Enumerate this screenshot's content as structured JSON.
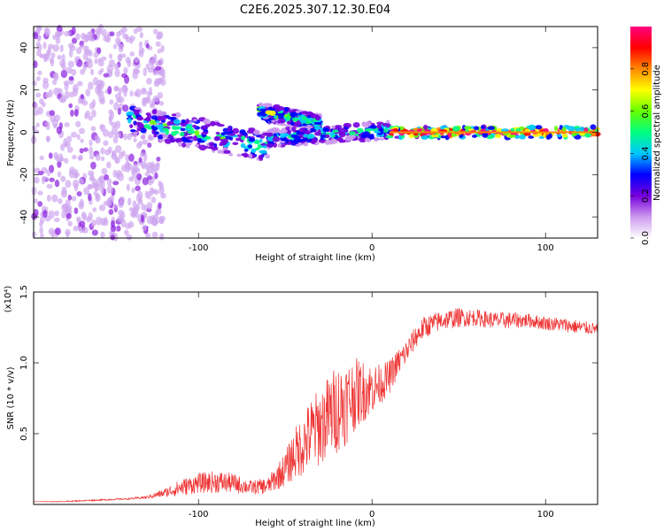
{
  "chart_data": [
    {
      "type": "heatmap",
      "title": "C2E6.2025.307.12.30.E04",
      "xlabel": "Height of straight line (km)",
      "ylabel": "Frequency (Hz)",
      "xlim": [
        -195,
        130
      ],
      "ylim": [
        -50,
        50
      ],
      "xticks": [
        -100,
        0,
        100
      ],
      "yticks": [
        -40,
        -20,
        0,
        20,
        40
      ],
      "colorbar": {
        "label": "Normalized spectral amplitude",
        "range": [
          0,
          1
        ],
        "ticks": [
          "0.0",
          "0.2",
          "0.4",
          "0.6",
          "0.8"
        ],
        "tick_values": [
          0.0,
          0.2,
          0.4,
          0.6,
          0.8
        ],
        "colors": [
          "#ffffff",
          "#cc99ee",
          "#7700dd",
          "#0000ff",
          "#00c8ff",
          "#00ff80",
          "#66ff00",
          "#ffff00",
          "#ff8800",
          "#ff0000",
          "#ff0080"
        ]
      },
      "regions": [
        {
          "name": "diffuse noise",
          "x_range": [
            -195,
            -120
          ],
          "freq_range": [
            -50,
            50
          ],
          "amplitude": 0.08
        },
        {
          "name": "broadening band",
          "x_range": [
            -140,
            -60
          ],
          "freq_center": [
            6,
            -7
          ],
          "freq_width": 14,
          "amplitude": 0.3
        },
        {
          "name": "upper branch",
          "x_range": [
            -65,
            -30
          ],
          "freq_center": [
            10,
            4
          ],
          "freq_width": 8,
          "amplitude": 0.35
        },
        {
          "name": "converging band",
          "x_range": [
            -60,
            10
          ],
          "freq_center": [
            -3,
            1
          ],
          "freq_width": 8,
          "amplitude": 0.3
        },
        {
          "name": "steady carrier",
          "x_range": [
            10,
            130
          ],
          "freq_center": [
            0,
            0
          ],
          "freq_width": 5,
          "amplitude": 0.75
        }
      ]
    },
    {
      "type": "line",
      "title": "",
      "xlabel": "Height of straight line (km)",
      "ylabel": "SNR (10 * v/v)",
      "y_scale_label": "(x10⁴)",
      "xlim": [
        -195,
        130
      ],
      "ylim": [
        0,
        1.5
      ],
      "xticks": [
        -100,
        0,
        100
      ],
      "yticks": [
        0.5,
        1.0,
        1.5
      ],
      "ytick_labels": [
        "0.5",
        "1.0",
        "1.5"
      ],
      "color": "#ee3333",
      "series": [
        {
          "name": "SNR",
          "x": [
            -195,
            -180,
            -160,
            -140,
            -130,
            -120,
            -110,
            -100,
            -90,
            -80,
            -70,
            -60,
            -50,
            -45,
            -40,
            -35,
            -30,
            -25,
            -20,
            -15,
            -10,
            -5,
            0,
            5,
            10,
            15,
            20,
            25,
            30,
            40,
            50,
            60,
            70,
            80,
            90,
            100,
            110,
            120,
            130
          ],
          "y": [
            0.02,
            0.02,
            0.03,
            0.04,
            0.05,
            0.08,
            0.12,
            0.15,
            0.16,
            0.15,
            0.12,
            0.13,
            0.25,
            0.35,
            0.42,
            0.5,
            0.55,
            0.62,
            0.68,
            0.72,
            0.78,
            0.8,
            0.82,
            0.85,
            0.9,
            1.0,
            1.08,
            1.18,
            1.25,
            1.3,
            1.32,
            1.32,
            1.3,
            1.3,
            1.3,
            1.28,
            1.27,
            1.25,
            1.24
          ],
          "noise": [
            0.0,
            0.003,
            0.005,
            0.006,
            0.01,
            0.03,
            0.06,
            0.07,
            0.08,
            0.07,
            0.05,
            0.06,
            0.12,
            0.18,
            0.22,
            0.26,
            0.28,
            0.3,
            0.32,
            0.3,
            0.26,
            0.22,
            0.18,
            0.14,
            0.12,
            0.1,
            0.09,
            0.08,
            0.08,
            0.07,
            0.07,
            0.06,
            0.06,
            0.06,
            0.05,
            0.05,
            0.05,
            0.05,
            0.04
          ]
        }
      ]
    }
  ]
}
